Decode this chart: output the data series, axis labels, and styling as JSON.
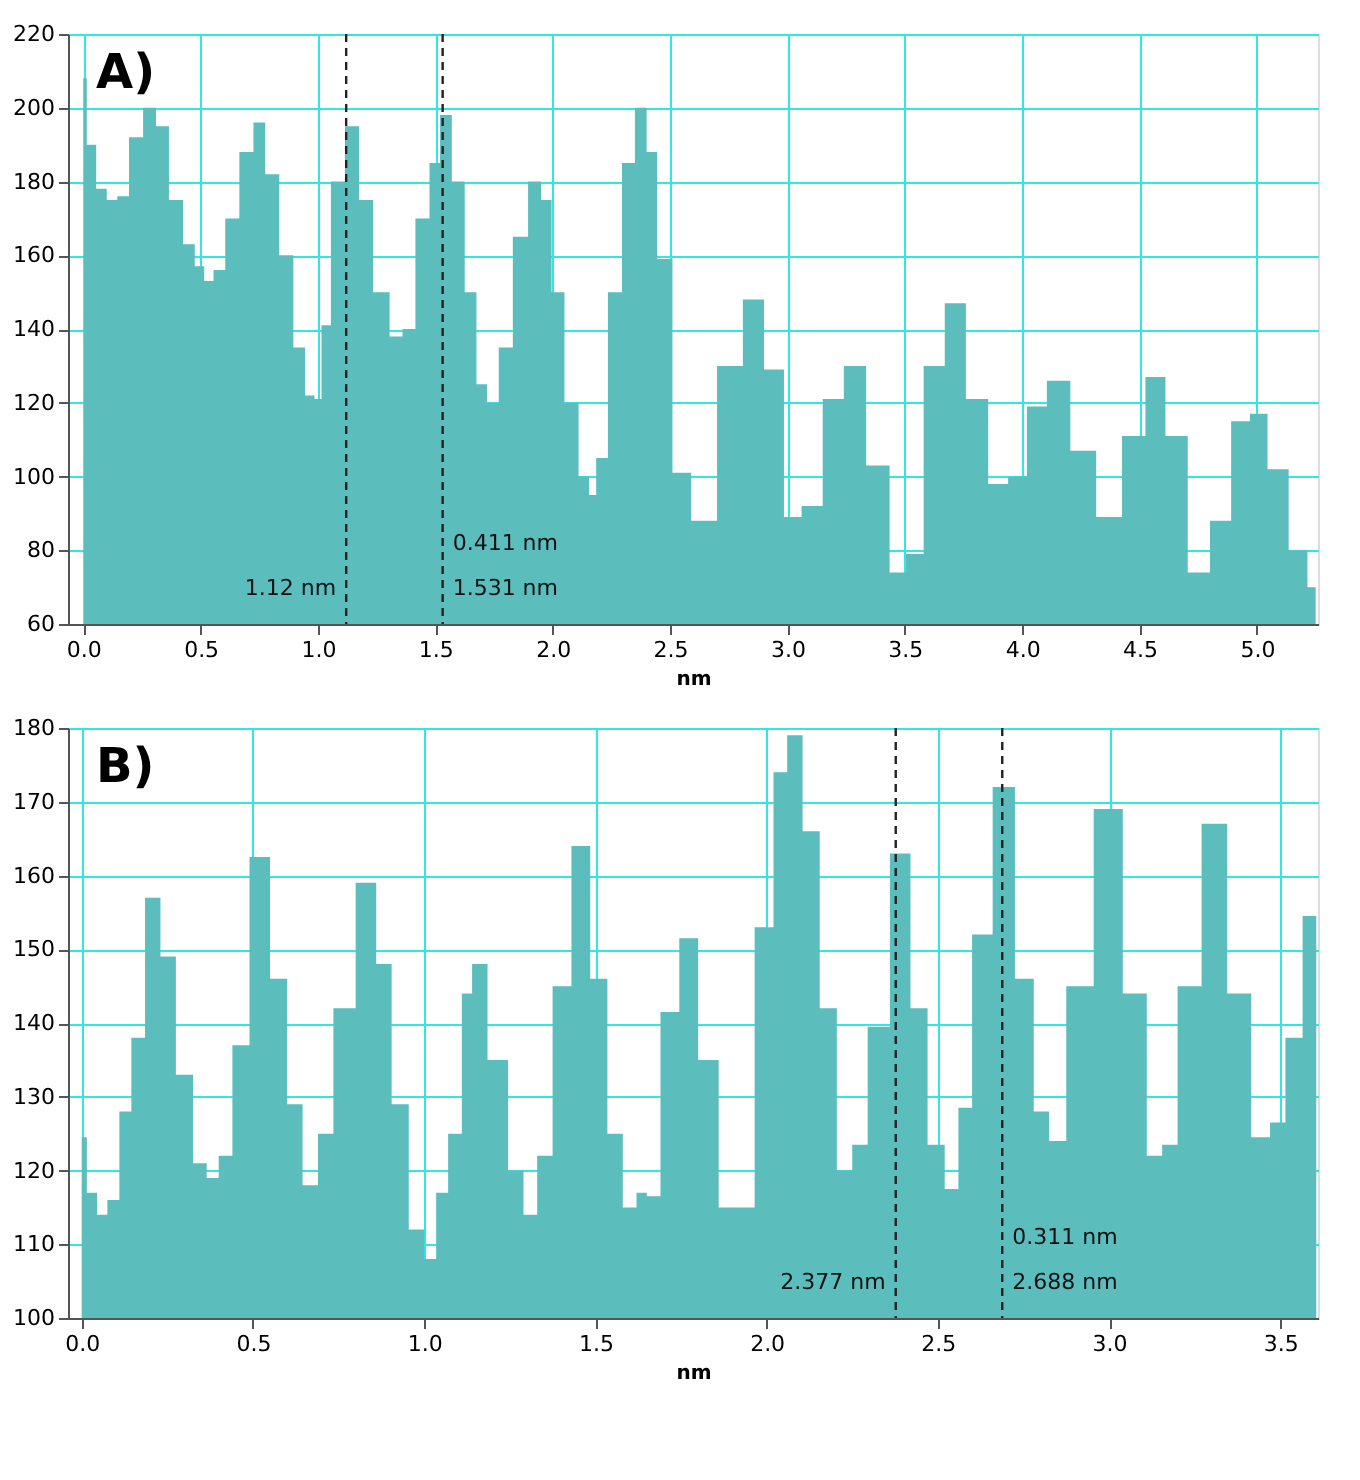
{
  "chart_data": [
    {
      "type": "area",
      "xlabel": "nm",
      "color": "#5cbdbd",
      "grid": true,
      "xlim": [
        -0.065,
        5.26
      ],
      "ylim": [
        60,
        220
      ],
      "xticks": [
        {
          "value": 0,
          "label": "0.0"
        },
        {
          "value": 0.5,
          "label": "0.5"
        },
        {
          "value": 1,
          "label": "1.0"
        },
        {
          "value": 1.5,
          "label": "1.5"
        },
        {
          "value": 2,
          "label": "2.0"
        },
        {
          "value": 2.5,
          "label": "2.5"
        },
        {
          "value": 3,
          "label": "3.0"
        },
        {
          "value": 3.5,
          "label": "3.5"
        },
        {
          "value": 4,
          "label": "4.0"
        },
        {
          "value": 4.5,
          "label": "4.5"
        },
        {
          "value": 5,
          "label": "5.0"
        }
      ],
      "yticks": [
        60,
        80,
        100,
        120,
        140,
        160,
        180,
        200,
        220
      ],
      "x": [
        0.0,
        0.03,
        0.08,
        0.12,
        0.17,
        0.22,
        0.29,
        0.33,
        0.4,
        0.45,
        0.5,
        0.53,
        0.58,
        0.63,
        0.7,
        0.75,
        0.8,
        0.87,
        0.92,
        0.97,
        1.0,
        1.03,
        1.08,
        1.15,
        1.2,
        1.27,
        1.34,
        1.38,
        1.45,
        1.5,
        1.54,
        1.6,
        1.65,
        1.7,
        1.74,
        1.8,
        1.86,
        1.93,
        1.97,
        2.02,
        2.08,
        2.14,
        2.17,
        2.2,
        2.27,
        2.32,
        2.38,
        2.42,
        2.47,
        2.55,
        2.63,
        2.77,
        2.85,
        2.95,
        3.02,
        3.1,
        3.2,
        3.28,
        3.39,
        3.48,
        3.53,
        3.63,
        3.71,
        3.81,
        3.9,
        3.98,
        4.06,
        4.15,
        4.26,
        4.37,
        4.48,
        4.57,
        4.65,
        4.76,
        4.84,
        4.94,
        5.0,
        5.09,
        5.18,
        5.25
      ],
      "values": [
        208,
        190,
        178,
        175,
        176,
        192,
        200,
        195,
        175,
        163,
        157,
        153,
        156,
        170,
        188,
        196,
        182,
        160,
        135,
        122,
        121,
        141,
        180,
        195,
        175,
        150,
        138,
        140,
        170,
        185,
        198,
        180,
        150,
        125,
        120,
        135,
        165,
        180,
        175,
        150,
        120,
        100,
        95,
        105,
        150,
        185,
        200,
        188,
        159,
        101,
        88,
        130,
        148,
        129,
        89,
        92,
        121,
        130,
        103,
        74,
        79,
        130,
        147,
        121,
        98,
        100,
        119,
        126,
        107,
        89,
        111,
        127,
        111,
        74,
        88,
        115,
        117,
        102,
        80,
        70
      ],
      "ref_lines": [
        {
          "axis": "x",
          "value": 1.12,
          "label": "1.12 nm",
          "line_style": "dashed",
          "color": "#222222"
        },
        {
          "axis": "x",
          "value": 1.531,
          "label": "1.531 nm",
          "line_style": "dashed",
          "color": "#222222"
        }
      ],
      "annotations": [
        "A)",
        "0.411 nm"
      ]
    },
    {
      "type": "area",
      "xlabel": "nm",
      "color": "#5cbdbd",
      "grid": true,
      "xlim": [
        -0.04,
        3.61
      ],
      "ylim": [
        100,
        180
      ],
      "xticks": [
        {
          "value": 0,
          "label": "0.0"
        },
        {
          "value": 0.5,
          "label": "0.5"
        },
        {
          "value": 1,
          "label": "1.0"
        },
        {
          "value": 1.5,
          "label": "1.5"
        },
        {
          "value": 2,
          "label": "2.0"
        },
        {
          "value": 2.5,
          "label": "2.5"
        },
        {
          "value": 3,
          "label": "3.0"
        },
        {
          "value": 3.5,
          "label": "3.5"
        }
      ],
      "yticks": [
        100,
        110,
        120,
        130,
        140,
        150,
        160,
        170,
        180
      ],
      "x": [
        0.0,
        0.03,
        0.06,
        0.09,
        0.13,
        0.16,
        0.21,
        0.25,
        0.3,
        0.35,
        0.38,
        0.42,
        0.46,
        0.52,
        0.58,
        0.62,
        0.67,
        0.71,
        0.76,
        0.84,
        0.88,
        0.93,
        0.98,
        1.02,
        1.05,
        1.09,
        1.13,
        1.15,
        1.22,
        1.27,
        1.31,
        1.35,
        1.4,
        1.46,
        1.51,
        1.56,
        1.6,
        1.64,
        1.66,
        1.72,
        1.77,
        1.83,
        1.89,
        1.93,
        2.0,
        2.04,
        2.08,
        2.13,
        2.18,
        2.23,
        2.27,
        2.32,
        2.4,
        2.44,
        2.5,
        2.54,
        2.58,
        2.62,
        2.7,
        2.75,
        2.81,
        2.84,
        2.91,
        3.0,
        3.08,
        3.14,
        3.17,
        3.23,
        3.31,
        3.38,
        3.45,
        3.49,
        3.54,
        3.59,
        3.605
      ],
      "values": [
        124.5,
        117,
        114,
        116,
        128,
        138,
        157,
        149,
        133,
        121,
        119,
        122,
        137,
        162.5,
        146,
        129,
        118,
        125,
        142,
        159,
        148,
        129,
        112,
        108,
        117,
        125,
        144,
        148,
        135,
        120,
        114,
        122,
        145,
        164,
        146,
        125,
        115,
        117,
        116.5,
        141.5,
        151.5,
        135,
        115,
        115,
        153,
        174,
        179,
        166,
        142,
        120,
        123.5,
        139.5,
        163,
        142,
        123.5,
        117.5,
        128.5,
        152,
        172,
        146,
        128,
        124,
        145,
        169,
        144,
        122,
        123.5,
        145,
        167,
        144,
        124.5,
        126.5,
        138,
        154.5,
        154.5
      ],
      "ref_lines": [
        {
          "axis": "x",
          "value": 2.377,
          "label": "2.377 nm",
          "line_style": "dashed",
          "color": "#222222"
        },
        {
          "axis": "x",
          "value": 2.688,
          "label": "2.688 nm",
          "line_style": "dashed",
          "color": "#222222"
        }
      ],
      "annotations": [
        "B)",
        "0.311 nm"
      ]
    }
  ]
}
